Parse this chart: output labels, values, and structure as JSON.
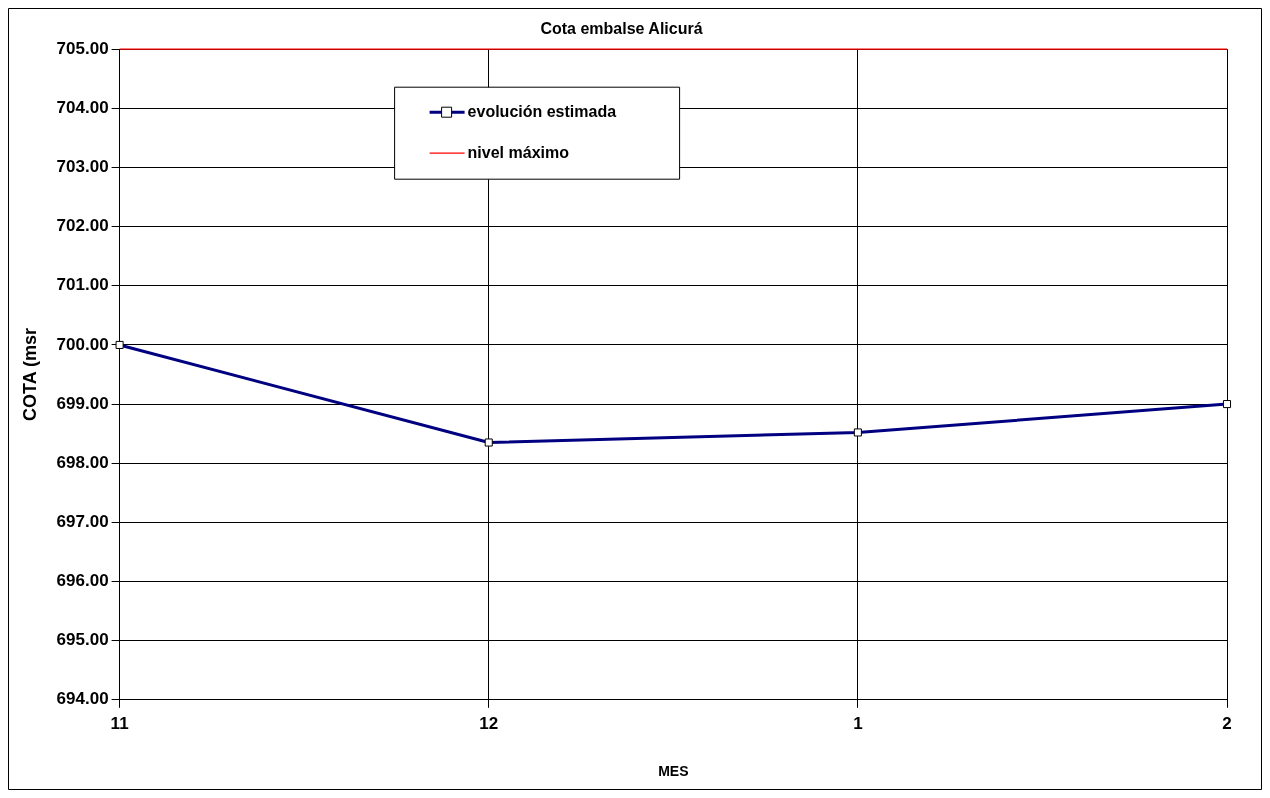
{
  "chart_data": {
    "type": "line",
    "title": "Cota embalse Alicurá",
    "xlabel": "MES",
    "ylabel": "COTA (msr",
    "categories": [
      "11",
      "12",
      "1",
      "2"
    ],
    "series": [
      {
        "name": "evolución estimada",
        "color": "#000080",
        "values": [
          700.0,
          698.35,
          698.52,
          699.0
        ],
        "marker": "square"
      },
      {
        "name": "nivel máximo",
        "color": "#ff0000",
        "values": [
          705,
          705,
          705,
          705
        ],
        "marker": "none"
      }
    ],
    "ylim": [
      694,
      705
    ],
    "yticks": [
      {
        "value": 694,
        "label": "694.00"
      },
      {
        "value": 695,
        "label": "695.00"
      },
      {
        "value": 696,
        "label": "696.00"
      },
      {
        "value": 697,
        "label": "697.00"
      },
      {
        "value": 698,
        "label": "698.00"
      },
      {
        "value": 699,
        "label": "699.00"
      },
      {
        "value": 700,
        "label": "700.00"
      },
      {
        "value": 701,
        "label": "701.00"
      },
      {
        "value": 702,
        "label": "702.00"
      },
      {
        "value": 703,
        "label": "703.00"
      },
      {
        "value": 704,
        "label": "704.00"
      },
      {
        "value": 705,
        "label": "705.00"
      }
    ],
    "grid": true,
    "legend": "top left"
  }
}
